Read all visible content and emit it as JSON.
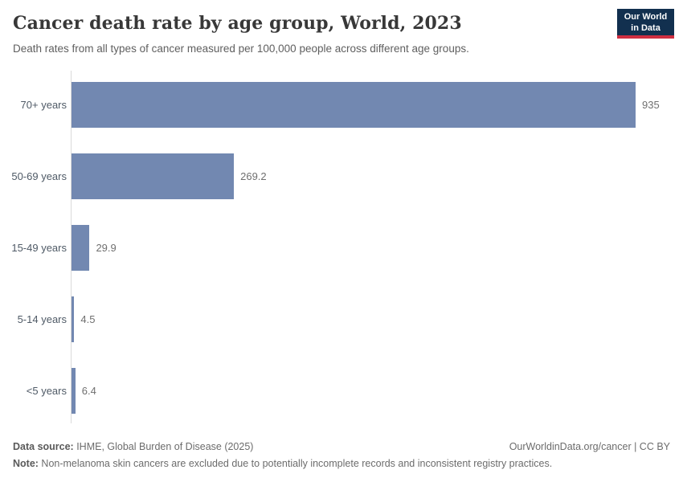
{
  "header": {
    "title": "Cancer death rate by age group, World, 2023",
    "subtitle": "Death rates from all types of cancer measured per 100,000 people across different age groups."
  },
  "logo": {
    "line1": "Our World",
    "line2": "in Data"
  },
  "chart_data": {
    "type": "bar",
    "orientation": "horizontal",
    "title": "Cancer death rate by age group, World, 2023",
    "categories": [
      "70+ years",
      "50-69 years",
      "15-49 years",
      "5-14 years",
      "<5 years"
    ],
    "values": [
      935,
      269.2,
      29.9,
      4.5,
      6.4
    ],
    "value_labels": [
      "935",
      "269.2",
      "29.9",
      "4.5",
      "6.4"
    ],
    "xlabel": "",
    "ylabel": "",
    "xlim": [
      0,
      935
    ],
    "grid": false,
    "legend": "none",
    "bar_color": "#7288b1"
  },
  "footer": {
    "source_label": "Data source:",
    "source_text": " IHME, Global Burden of Disease (2025)",
    "note_label": "Note:",
    "note_text": " Non-melanoma skin cancers are excluded due to potentially incomplete records and inconsistent registry practices.",
    "link": "OurWorldinData.org/cancer | CC BY"
  },
  "colors": {
    "bar": "#7288b1",
    "axis": "#dadada",
    "logo_bg": "#12304f",
    "logo_accent": "#cf2e41"
  }
}
